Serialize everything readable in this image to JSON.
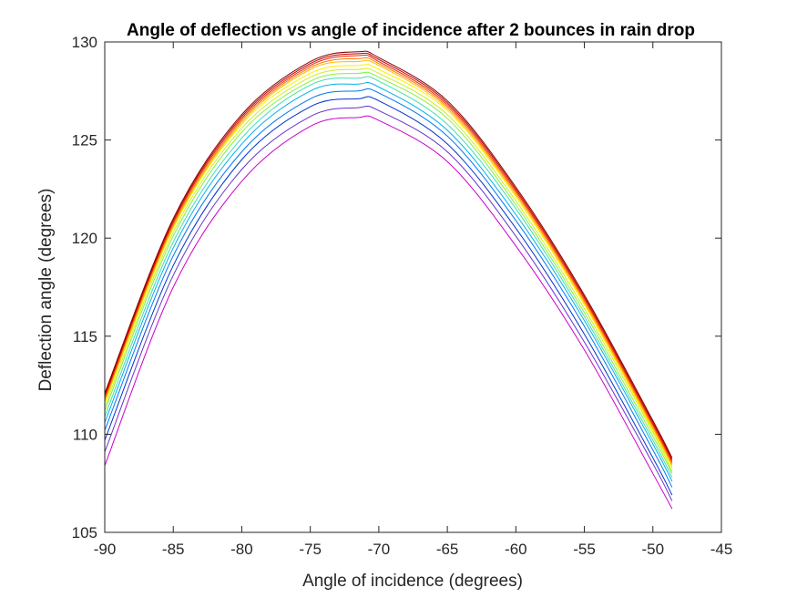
{
  "chart_data": {
    "type": "line",
    "title": "Angle of deflection vs angle of incidence after 2 bounces in rain drop",
    "xlabel": "Angle of incidence (degrees)",
    "ylabel": "Deflection angle (degrees)",
    "xlim": [
      -90,
      -45
    ],
    "ylim": [
      105,
      130
    ],
    "xticks": [
      -90,
      -85,
      -80,
      -75,
      -70,
      -65,
      -60,
      -55,
      -50,
      -45
    ],
    "yticks": [
      105,
      110,
      115,
      120,
      125,
      130
    ],
    "x_range": [
      -90,
      -48.6
    ],
    "grid": false,
    "legend": "none",
    "colors": [
      "#cc00cc",
      "#6633cc",
      "#0033cc",
      "#0077ee",
      "#00b0ee",
      "#44ddaa",
      "#88ee44",
      "#ccee22",
      "#ffee00",
      "#ffbb00",
      "#ff7700",
      "#ee2200",
      "#bb0000",
      "#880000"
    ],
    "series": [
      {
        "color": "#cc00cc",
        "x": [
          -90,
          -85,
          -80,
          -75,
          -71.5,
          -70,
          -65,
          -60,
          -55,
          -50,
          -48.6
        ],
        "y": [
          108.4,
          117.5,
          122.9,
          125.7,
          126.15,
          126.0,
          123.9,
          119.6,
          114.3,
          108.0,
          106.2
        ]
      },
      {
        "color": "#6633cc",
        "x": [
          -90,
          -85,
          -80,
          -75,
          -71.5,
          -70,
          -65,
          -60,
          -55,
          -50,
          -48.6
        ],
        "y": [
          109.1,
          118.1,
          123.5,
          126.2,
          126.65,
          126.5,
          124.4,
          120.1,
          114.7,
          108.5,
          106.6
        ]
      },
      {
        "color": "#0033cc",
        "x": [
          -90,
          -85,
          -80,
          -75,
          -71.5,
          -70,
          -65,
          -60,
          -55,
          -50,
          -48.6
        ],
        "y": [
          109.7,
          118.6,
          124.0,
          126.7,
          127.1,
          127.0,
          124.8,
          120.5,
          115.1,
          108.8,
          106.9
        ]
      },
      {
        "color": "#0077ee",
        "x": [
          -90,
          -85,
          -80,
          -75,
          -71.5,
          -70,
          -65,
          -60,
          -55,
          -50,
          -48.6
        ],
        "y": [
          110.2,
          119.1,
          124.4,
          127.1,
          127.5,
          127.4,
          125.2,
          120.9,
          115.5,
          109.2,
          107.3
        ]
      },
      {
        "color": "#00b0ee",
        "x": [
          -90,
          -85,
          -80,
          -75,
          -71.5,
          -70,
          -65,
          -60,
          -55,
          -50,
          -48.6
        ],
        "y": [
          110.6,
          119.5,
          124.8,
          127.5,
          127.85,
          127.7,
          125.5,
          121.2,
          115.8,
          109.5,
          107.6
        ]
      },
      {
        "color": "#44ddaa",
        "x": [
          -90,
          -85,
          -80,
          -75,
          -71.5,
          -70,
          -65,
          -60,
          -55,
          -50,
          -48.6
        ],
        "y": [
          110.9,
          119.8,
          125.1,
          127.8,
          128.15,
          128.0,
          125.8,
          121.5,
          116.0,
          109.7,
          107.8
        ]
      },
      {
        "color": "#88ee44",
        "x": [
          -90,
          -85,
          -80,
          -75,
          -71.5,
          -70,
          -65,
          -60,
          -55,
          -50,
          -48.6
        ],
        "y": [
          111.2,
          120.1,
          125.4,
          128.0,
          128.4,
          128.2,
          126.1,
          121.7,
          116.2,
          109.9,
          108.0
        ]
      },
      {
        "color": "#ccee22",
        "x": [
          -90,
          -85,
          -80,
          -75,
          -71.5,
          -70,
          -65,
          -60,
          -55,
          -50,
          -48.6
        ],
        "y": [
          111.4,
          120.3,
          125.6,
          128.2,
          128.6,
          128.4,
          126.3,
          121.9,
          116.4,
          110.1,
          108.1
        ]
      },
      {
        "color": "#ffee00",
        "x": [
          -90,
          -85,
          -80,
          -75,
          -71.5,
          -70,
          -65,
          -60,
          -55,
          -50,
          -48.6
        ],
        "y": [
          111.6,
          120.5,
          125.8,
          128.4,
          128.8,
          128.6,
          126.5,
          122.1,
          116.6,
          110.2,
          108.3
        ]
      },
      {
        "color": "#ffbb00",
        "x": [
          -90,
          -85,
          -80,
          -75,
          -71.5,
          -70,
          -65,
          -60,
          -55,
          -50,
          -48.6
        ],
        "y": [
          111.7,
          120.6,
          125.9,
          128.6,
          129.0,
          128.8,
          126.6,
          122.2,
          116.7,
          110.3,
          108.4
        ]
      },
      {
        "color": "#ff7700",
        "x": [
          -90,
          -85,
          -80,
          -75,
          -71.5,
          -70,
          -65,
          -60,
          -55,
          -50,
          -48.6
        ],
        "y": [
          111.8,
          120.7,
          126.0,
          128.7,
          129.15,
          128.9,
          126.7,
          122.3,
          116.8,
          110.4,
          108.5
        ]
      },
      {
        "color": "#ee2200",
        "x": [
          -90,
          -85,
          -80,
          -75,
          -71.5,
          -70,
          -65,
          -60,
          -55,
          -50,
          -48.6
        ],
        "y": [
          111.9,
          120.8,
          126.1,
          128.8,
          129.3,
          129.0,
          126.8,
          122.4,
          116.9,
          110.5,
          108.6
        ]
      },
      {
        "color": "#bb0000",
        "x": [
          -90,
          -85,
          -80,
          -75,
          -71.5,
          -70,
          -65,
          -60,
          -55,
          -50,
          -48.6
        ],
        "y": [
          112.0,
          120.9,
          126.2,
          128.9,
          129.4,
          129.1,
          126.9,
          122.5,
          117.0,
          110.6,
          108.7
        ]
      },
      {
        "color": "#880000",
        "x": [
          -90,
          -85,
          -80,
          -75,
          -71.5,
          -70,
          -65,
          -60,
          -55,
          -50,
          -48.6
        ],
        "y": [
          112.1,
          121.0,
          126.3,
          129.0,
          129.5,
          129.2,
          127.0,
          122.6,
          117.1,
          110.7,
          108.8
        ]
      }
    ]
  }
}
